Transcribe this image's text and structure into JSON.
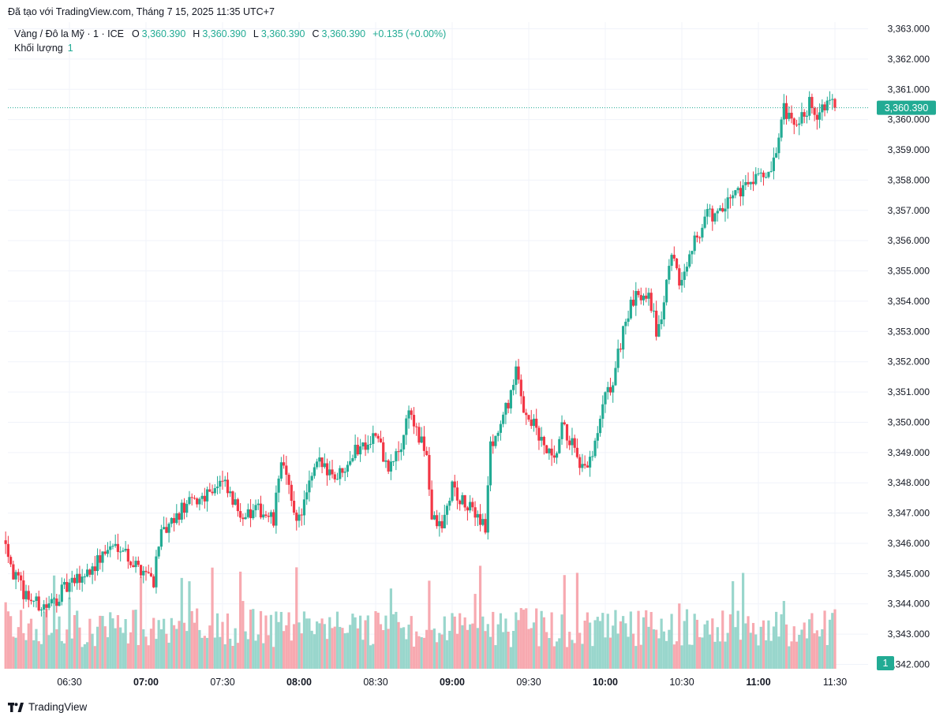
{
  "caption": "Đã tạo với TradingView.com, Tháng 7 15, 2025 11:35 UTC+7",
  "legend": {
    "symbol": "Vàng / Đô la Mỹ · 1 · ICE",
    "o_label": "O",
    "o_value": "3,360.390",
    "h_label": "H",
    "h_value": "3,360.390",
    "l_label": "L",
    "l_value": "3,360.390",
    "c_label": "C",
    "c_value": "3,360.390",
    "change": "+0.135 (+0.00%)"
  },
  "volume_legend": {
    "label": "Khối lượng",
    "value": "1"
  },
  "price_tag": "3,360.390",
  "volume_tag": "1",
  "brand": "TradingView",
  "colors": {
    "up": "#22ab94",
    "down": "#f23645",
    "vol_up": "#99d6cc",
    "vol_down": "#f7a9b0",
    "grid": "#f0f3fa",
    "price_line": "#22ab94"
  },
  "chart_data": {
    "type": "candlestick",
    "title": "Vàng / Đô la Mỹ · 1 · ICE",
    "y_axis": {
      "side": "right",
      "range": [
        3342.0,
        3363.0
      ],
      "ticks": [
        "3,363.000",
        "3,362.000",
        "3,361.000",
        "3,360.000",
        "3,359.000",
        "3,358.000",
        "3,357.000",
        "3,356.000",
        "3,355.000",
        "3,354.000",
        "3,353.000",
        "3,352.000",
        "3,351.000",
        "3,350.000",
        "3,349.000",
        "3,348.000",
        "3,347.000",
        "3,346.000",
        "3,345.000",
        "3,344.000",
        "3,343.000",
        "3,342.000"
      ]
    },
    "x_axis": {
      "ticks": [
        {
          "label": "06:30",
          "bold": false
        },
        {
          "label": "07:00",
          "bold": true
        },
        {
          "label": "07:30",
          "bold": false
        },
        {
          "label": "08:00",
          "bold": true
        },
        {
          "label": "08:30",
          "bold": false
        },
        {
          "label": "09:00",
          "bold": true
        },
        {
          "label": "09:30",
          "bold": false
        },
        {
          "label": "10:00",
          "bold": true
        },
        {
          "label": "10:30",
          "bold": false
        },
        {
          "label": "11:00",
          "bold": true
        },
        {
          "label": "11:30",
          "bold": false
        }
      ]
    },
    "last_price": 3360.39,
    "grid": true,
    "close_path": [
      [
        "06:05",
        3346.2
      ],
      [
        "06:08",
        3345.0
      ],
      [
        "06:12",
        3344.4
      ],
      [
        "06:17",
        3344.0
      ],
      [
        "06:22",
        3343.9
      ],
      [
        "06:27",
        3344.4
      ],
      [
        "06:32",
        3344.7
      ],
      [
        "06:40",
        3345.3
      ],
      [
        "06:45",
        3345.8
      ],
      [
        "06:50",
        3346.0
      ],
      [
        "06:55",
        3345.3
      ],
      [
        "07:00",
        3345.1
      ],
      [
        "07:03",
        3344.8
      ],
      [
        "07:05",
        3346.1
      ],
      [
        "07:10",
        3346.6
      ],
      [
        "07:15",
        3347.2
      ],
      [
        "07:20",
        3347.4
      ],
      [
        "07:25",
        3347.8
      ],
      [
        "07:30",
        3348.0
      ],
      [
        "07:35",
        3347.2
      ],
      [
        "07:40",
        3346.9
      ],
      [
        "07:45",
        3347.1
      ],
      [
        "07:50",
        3346.7
      ],
      [
        "07:53",
        3348.9
      ],
      [
        "07:57",
        3347.3
      ],
      [
        "08:00",
        3346.8
      ],
      [
        "08:03",
        3347.6
      ],
      [
        "08:07",
        3348.6
      ],
      [
        "08:10",
        3348.6
      ],
      [
        "08:15",
        3348.2
      ],
      [
        "08:20",
        3348.9
      ],
      [
        "08:25",
        3349.3
      ],
      [
        "08:30",
        3349.6
      ],
      [
        "08:35",
        3348.4
      ],
      [
        "08:40",
        3349.2
      ],
      [
        "08:43",
        3350.5
      ],
      [
        "08:47",
        3349.4
      ],
      [
        "08:50",
        3349.0
      ],
      [
        "08:52",
        3346.8
      ],
      [
        "08:56",
        3346.5
      ],
      [
        "09:00",
        3347.9
      ],
      [
        "09:03",
        3347.4
      ],
      [
        "09:07",
        3347.1
      ],
      [
        "09:10",
        3347.0
      ],
      [
        "09:13",
        3346.5
      ],
      [
        "09:15",
        3349.2
      ],
      [
        "09:20",
        3350.1
      ],
      [
        "09:25",
        3351.6
      ],
      [
        "09:28",
        3350.5
      ],
      [
        "09:32",
        3349.9
      ],
      [
        "09:35",
        3349.3
      ],
      [
        "09:40",
        3348.6
      ],
      [
        "09:43",
        3349.8
      ],
      [
        "09:47",
        3349.3
      ],
      [
        "09:50",
        3348.3
      ],
      [
        "09:55",
        3348.8
      ],
      [
        "10:00",
        3350.8
      ],
      [
        "10:03",
        3351.3
      ],
      [
        "10:07",
        3353.1
      ],
      [
        "10:10",
        3353.8
      ],
      [
        "10:13",
        3354.2
      ],
      [
        "10:17",
        3354.4
      ],
      [
        "10:20",
        3353.0
      ],
      [
        "10:23",
        3353.8
      ],
      [
        "10:25",
        3355.4
      ],
      [
        "10:28",
        3355.0
      ],
      [
        "10:30",
        3354.5
      ],
      [
        "10:33",
        3355.8
      ],
      [
        "10:37",
        3356.3
      ],
      [
        "10:40",
        3356.9
      ],
      [
        "10:43",
        3356.8
      ],
      [
        "10:47",
        3357.0
      ],
      [
        "10:50",
        3357.6
      ],
      [
        "10:55",
        3357.8
      ],
      [
        "10:58",
        3358.1
      ],
      [
        "11:00",
        3358.4
      ],
      [
        "11:03",
        3357.9
      ],
      [
        "11:07",
        3358.7
      ],
      [
        "11:10",
        3360.3
      ],
      [
        "11:13",
        3359.8
      ],
      [
        "11:17",
        3360.0
      ],
      [
        "11:20",
        3360.6
      ],
      [
        "11:23",
        3360.2
      ],
      [
        "11:27",
        3360.5
      ],
      [
        "11:30",
        3360.39
      ]
    ],
    "volume_tag_value": 1
  }
}
